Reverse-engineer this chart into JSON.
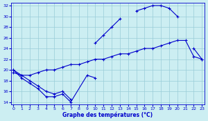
{
  "title": "Graphe des températures (°C)",
  "bg_color": "#cceef2",
  "grid_color": "#99ccd8",
  "line_color": "#0000cc",
  "xlim": [
    -0.3,
    23.3
  ],
  "ylim": [
    13.5,
    32.5
  ],
  "xticks": [
    0,
    1,
    2,
    3,
    4,
    5,
    6,
    7,
    8,
    9,
    10,
    11,
    12,
    13,
    14,
    15,
    16,
    17,
    18,
    19,
    20,
    21,
    22,
    23
  ],
  "yticks": [
    14,
    16,
    18,
    20,
    22,
    24,
    26,
    28,
    30,
    32
  ],
  "line_zigzag_x": [
    0,
    1,
    2,
    3,
    4,
    5,
    6,
    7,
    9,
    10
  ],
  "line_zigzag_y": [
    20,
    18.5,
    17.5,
    16.5,
    15,
    15,
    15.5,
    14,
    19,
    18.5
  ],
  "line_diag_x": [
    0,
    1,
    2,
    3,
    4,
    5,
    6,
    7,
    8,
    9,
    10,
    11,
    12,
    13,
    14,
    15,
    16,
    17,
    18,
    19,
    20,
    21,
    22,
    23
  ],
  "line_diag_y": [
    19.5,
    19,
    19,
    19.5,
    20,
    20,
    20.5,
    21,
    21,
    21.5,
    22,
    22,
    22.5,
    23,
    23,
    23.5,
    24,
    24,
    24.5,
    25,
    25.5,
    25.5,
    22.5,
    22
  ],
  "line_peak_x": [
    0,
    1,
    2,
    3,
    4,
    5,
    6,
    7,
    8,
    9,
    10,
    11,
    12,
    13,
    14,
    15,
    16,
    17,
    18,
    19,
    20,
    21,
    22,
    23
  ],
  "line_peak_y": [
    20,
    19,
    18,
    17,
    16,
    15.5,
    16,
    14.5,
    null,
    null,
    25,
    26.5,
    28,
    29.5,
    null,
    31,
    31.5,
    32,
    32,
    31.5,
    30,
    null,
    24,
    22
  ]
}
